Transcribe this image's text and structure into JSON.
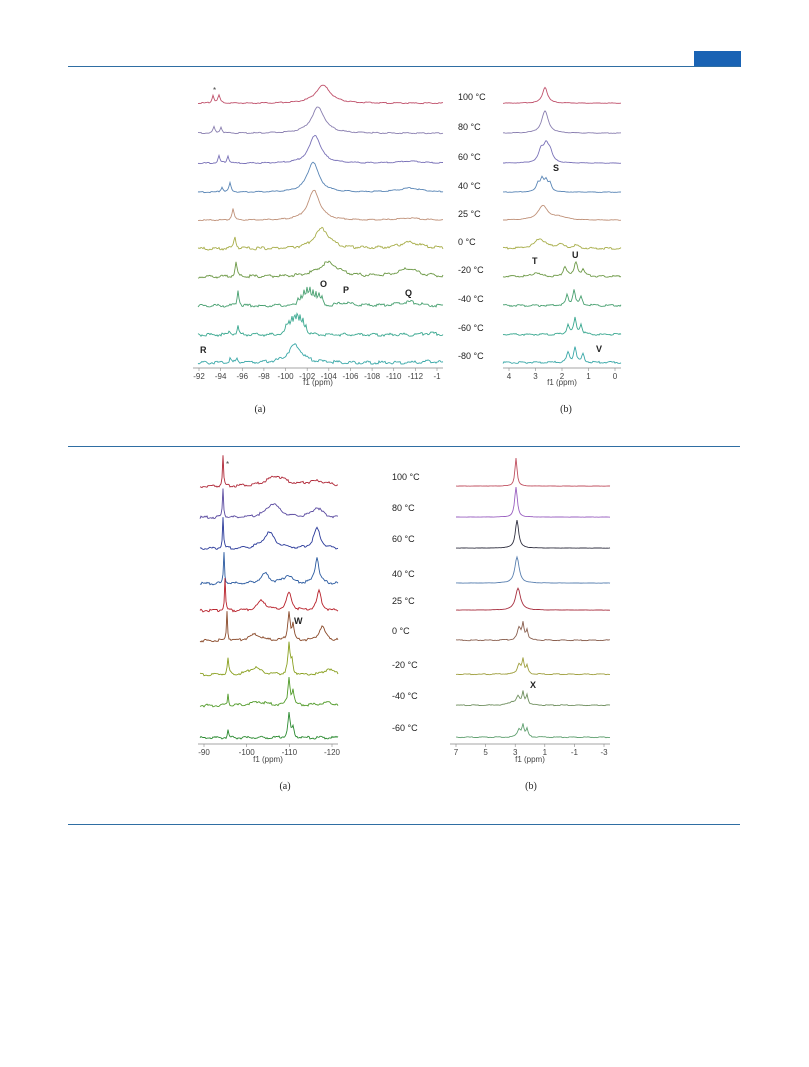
{
  "header": {
    "accent_color": "#1a63b4",
    "rule_color": "#2f6ea3"
  },
  "figures": [
    {
      "panel_a": {
        "caption": "(a)",
        "xlabel": "f1 (ppm)",
        "ticks": [
          "-92",
          "-94",
          "-96",
          "-98",
          "-100",
          "-102",
          "-104",
          "-106",
          "-108",
          "-110",
          "-112",
          "-1"
        ],
        "star": "*",
        "peak_labels": [
          "O",
          "P",
          "Q",
          "R"
        ]
      },
      "temperatures": [
        "100 °C",
        "80 °C",
        "60 °C",
        "40 °C",
        "25 °C",
        "0 °C",
        "-20 °C",
        "-40 °C",
        "-60 °C",
        "-80 °C"
      ],
      "panel_b": {
        "caption": "(b)",
        "xlabel": "f1 (ppm)",
        "ticks": [
          "4",
          "3",
          "2",
          "1",
          "0"
        ],
        "peak_labels": [
          "S",
          "T",
          "U",
          "V"
        ]
      },
      "colors": [
        "#c0526c",
        "#8a7fb0",
        "#7a72b8",
        "#5a86b6",
        "#c0927a",
        "#a8ae4a",
        "#6e9a48",
        "#48a070",
        "#3aa890",
        "#3aa8a8"
      ]
    },
    {
      "panel_a": {
        "caption": "(a)",
        "xlabel": "f1 (ppm)",
        "ticks": [
          "-90",
          "-100",
          "-110",
          "-120"
        ],
        "star": "*",
        "peak_labels": [
          "W"
        ]
      },
      "temperatures": [
        "100 °C",
        "80 °C",
        "60 °C",
        "40 °C",
        "25 °C",
        "0 °C",
        "-20 °C",
        "-40 °C",
        "-60 °C"
      ],
      "panel_b": {
        "caption": "(b)",
        "xlabel": "f1 (ppm)",
        "ticks": [
          "7",
          "5",
          "3",
          "1",
          "-1",
          "-3"
        ],
        "peak_labels": [
          "X"
        ]
      },
      "colors": [
        "#b02838",
        "#5a4aa0",
        "#2a3a9a",
        "#2a5aa0",
        "#b8202a",
        "#8a4a2a",
        "#8aa020",
        "#509a28",
        "#2a8a30"
      ],
      "colors_b": [
        "#c05060",
        "#9a60c0",
        "#303040",
        "#5a80b0",
        "#a83040",
        "#8a6050",
        "#a0a040",
        "#709060",
        "#60a070"
      ]
    }
  ]
}
